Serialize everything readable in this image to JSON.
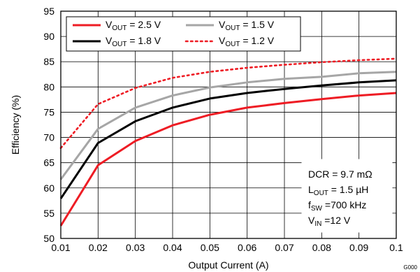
{
  "chart_data": {
    "type": "line",
    "xlabel": "Output Current (A)",
    "ylabel": "Efficiency (%)",
    "xlim": [
      0.01,
      0.1
    ],
    "ylim": [
      50,
      95
    ],
    "x_ticks": [
      "0.01",
      "0.02",
      "0.03",
      "0.04",
      "0.05",
      "0.06",
      "0.07",
      "0.08",
      "0.09",
      "0.1"
    ],
    "y_ticks": [
      "50",
      "55",
      "60",
      "65",
      "70",
      "75",
      "80",
      "85",
      "90",
      "95"
    ],
    "grid": true,
    "legend_placement": "top-left",
    "x": [
      0.01,
      0.02,
      0.03,
      0.04,
      0.05,
      0.06,
      0.07,
      0.08,
      0.09,
      0.1
    ],
    "series": [
      {
        "name": "2.5",
        "legend_prefix": "V",
        "legend_sub": "OUT",
        "legend_suffix": " = 2.5 V",
        "color": "#ee1c24",
        "dash": "solid",
        "values": [
          52.5,
          64.5,
          69.3,
          72.4,
          74.5,
          75.9,
          76.8,
          77.6,
          78.3,
          78.8
        ]
      },
      {
        "name": "1.5",
        "legend_prefix": "V",
        "legend_sub": "OUT",
        "legend_suffix": " = 1.5 V",
        "color": "#a6a6a6",
        "dash": "solid",
        "values": [
          61.7,
          71.7,
          75.9,
          78.3,
          79.9,
          80.9,
          81.6,
          82.0,
          82.7,
          83.0
        ]
      },
      {
        "name": "1.8",
        "legend_prefix": "V",
        "legend_sub": "OUT",
        "legend_suffix": " = 1.8 V",
        "color": "#000000",
        "dash": "solid",
        "values": [
          57.9,
          68.9,
          73.2,
          75.9,
          77.7,
          78.8,
          79.6,
          80.3,
          80.9,
          81.3
        ]
      },
      {
        "name": "1.2",
        "legend_prefix": "V",
        "legend_sub": "OUT",
        "legend_suffix": " = 1.2 V",
        "color": "#ee1c24",
        "dash": "dotted",
        "values": [
          67.9,
          76.6,
          79.8,
          81.8,
          83.0,
          83.8,
          84.4,
          84.9,
          85.3,
          85.6
        ]
      }
    ],
    "annotations": [
      {
        "main": "DCR = 9.7 mΩ",
        "sub": "",
        "rest": ""
      },
      {
        "main": "L",
        "sub": "OUT",
        "rest": " = 1.5 µH"
      },
      {
        "main": "f",
        "sub": "SW",
        "rest": " =700 kHz"
      },
      {
        "main": "V",
        "sub": "IN",
        "rest": " =12 V"
      }
    ],
    "figure_id": "G000"
  }
}
